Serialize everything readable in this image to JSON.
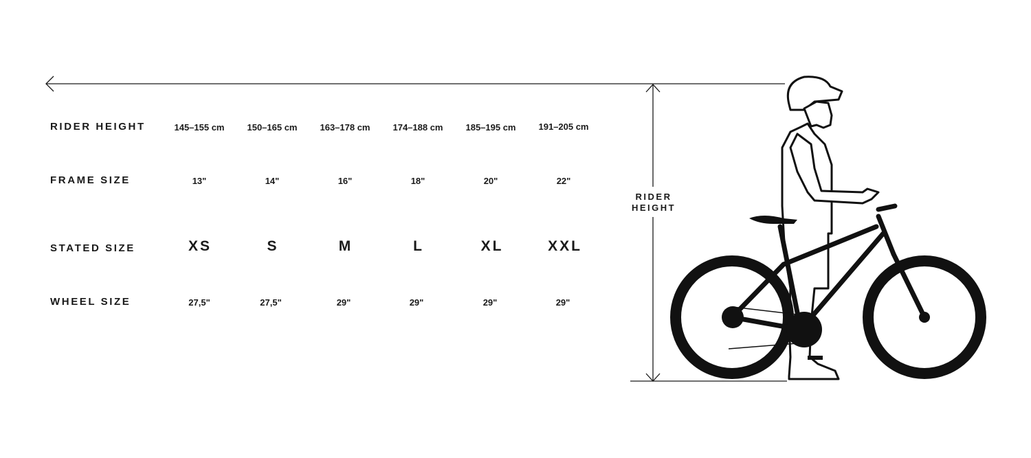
{
  "rows": {
    "rider_height": {
      "label": "RIDER HEIGHT",
      "values": [
        "145–155 cm",
        "150–165 cm",
        "163–178 cm",
        "174–188 cm",
        "185–195 cm",
        "191–205 cm"
      ]
    },
    "frame_size": {
      "label": "FRAME SIZE",
      "values": [
        "13\"",
        "14\"",
        "16\"",
        "18\"",
        "20\"",
        "22\""
      ]
    },
    "stated_size": {
      "label": "STATED SIZE",
      "values": [
        "XS",
        "S",
        "M",
        "L",
        "XL",
        "XXL"
      ]
    },
    "wheel_size": {
      "label": "WHEEL SIZE",
      "values": [
        "27,5\"",
        "27,5\"",
        "29\"",
        "29\"",
        "29\"",
        "29\""
      ]
    }
  },
  "illustration": {
    "dimension_label_line1": "RIDER",
    "dimension_label_line2": "HEIGHT",
    "icons": [
      "arrow-left-icon",
      "rider-with-bike-illustration"
    ]
  }
}
